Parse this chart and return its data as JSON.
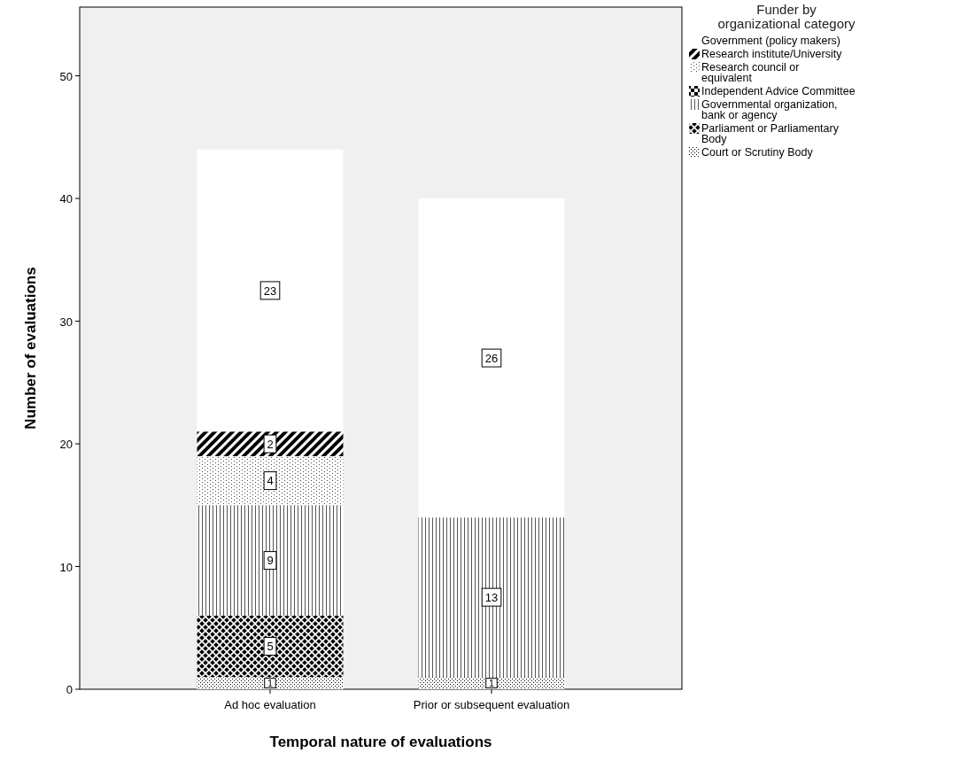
{
  "chart_data": {
    "type": "bar",
    "stacked": true,
    "xlabel": "Temporal nature of evaluations",
    "ylabel": "Number of evaluations",
    "legend_title": "Funder by organizational category",
    "categories": [
      "Ad hoc evaluation",
      "Prior or subsequent evaluation"
    ],
    "series": [
      {
        "name": "Court or Scrutiny Body",
        "color": "#ffffff",
        "values": [
          1,
          1
        ]
      },
      {
        "name": "Parliament or Parliamentary Body",
        "color": "#ffffff",
        "values": [
          5,
          null
        ]
      },
      {
        "name": "Governmental organization, bank or agency",
        "color": "#ffffff",
        "values": [
          9,
          13
        ]
      },
      {
        "name": "Independent Advice Committee",
        "color": "#ffffff",
        "values": [
          null,
          null
        ]
      },
      {
        "name": "Research council or equivalent",
        "color": "#ffffff",
        "values": [
          4,
          null
        ]
      },
      {
        "name": "Research institute/University",
        "color": "#ffffff",
        "values": [
          2,
          null
        ]
      },
      {
        "name": "Government (policy makers)",
        "color": "#ffffff",
        "values": [
          23,
          26
        ]
      }
    ],
    "ylim": [
      0,
      55.6
    ],
    "yticks": [
      0,
      10,
      20,
      30,
      40,
      50
    ],
    "grid": false,
    "legend": "right",
    "data_labels": true
  }
}
